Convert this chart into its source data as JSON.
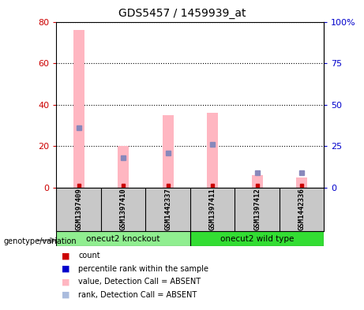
{
  "title": "GDS5457 / 1459939_at",
  "samples": [
    "GSM1397409",
    "GSM1397410",
    "GSM1442337",
    "GSM1397411",
    "GSM1397412",
    "GSM1442336"
  ],
  "group_labels": [
    "onecut2 knockout",
    "onecut2 wild type"
  ],
  "pink_bar_values": [
    76,
    20,
    35,
    36,
    6,
    5
  ],
  "blue_marker_values": [
    36,
    18,
    21,
    26,
    9,
    9
  ],
  "red_dot_values": [
    1,
    1,
    1,
    1,
    1,
    1
  ],
  "ylim_left": [
    0,
    80
  ],
  "ylim_right": [
    0,
    100
  ],
  "yticks_left": [
    0,
    20,
    40,
    60,
    80
  ],
  "yticks_right": [
    0,
    25,
    50,
    75,
    100
  ],
  "yticklabels_right": [
    "0",
    "25",
    "50",
    "75",
    "100%"
  ],
  "left_axis_color": "#CC0000",
  "right_axis_color": "#0000CC",
  "bg_color": "#FFFFFF",
  "plot_bg": "#FFFFFF",
  "bar_pink": "#FFB6C1",
  "bar_blue_marker": "#8888BB",
  "bar_red_dot": "#CC0000",
  "sample_bg": "#C8C8C8",
  "knockout_color": "#90EE90",
  "wildtype_color": "#33DD33",
  "legend_colors": [
    "#CC0000",
    "#0000CC",
    "#FFB6C1",
    "#AABBDD"
  ],
  "legend_labels": [
    "count",
    "percentile rank within the sample",
    "value, Detection Call = ABSENT",
    "rank, Detection Call = ABSENT"
  ]
}
